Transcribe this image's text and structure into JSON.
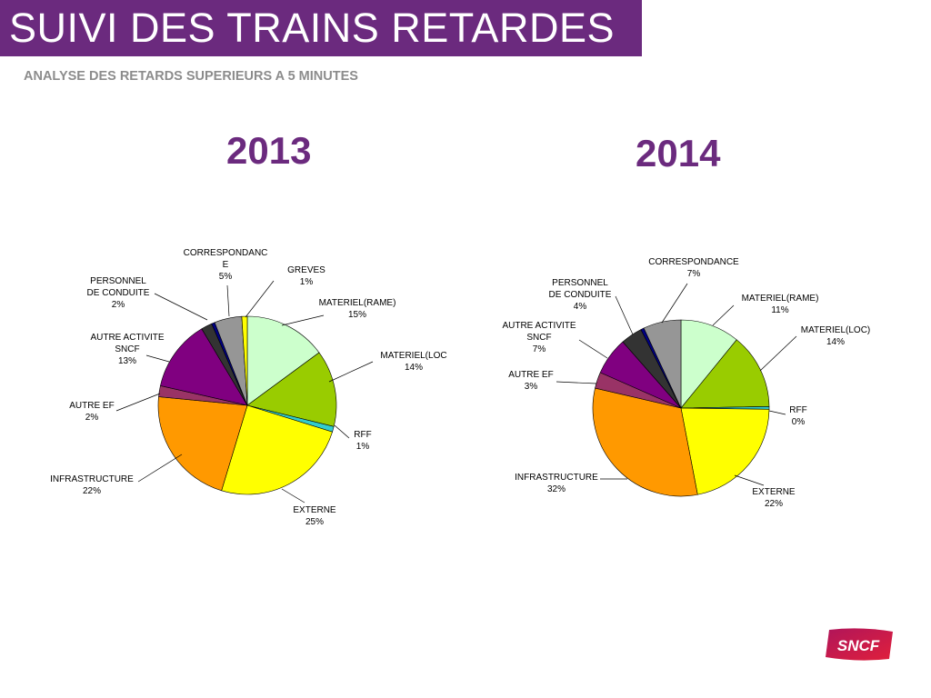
{
  "header": {
    "title": "SUIVI DES TRAINS RETARDES",
    "subtitle": "ANALYSE DES RETARDS SUPERIEURS A 5 MINUTES"
  },
  "logo": {
    "text": "SNCF",
    "icon": "sncf-logo"
  },
  "colors": {
    "brand_purple": "#6b2a7e",
    "subtitle_gray": "#8c8c8c"
  },
  "chart_data": [
    {
      "type": "pie",
      "title": "2013",
      "slices": [
        {
          "label": "MATERIEL(RAME)",
          "value": 15,
          "display": "15%",
          "color": "#ccffcc"
        },
        {
          "label": "MATERIEL(LOC",
          "value": 14,
          "display": "14%",
          "color": "#99cc00"
        },
        {
          "label": "RFF",
          "value": 1,
          "display": "1%",
          "color": "#33cccc"
        },
        {
          "label": "EXTERNE",
          "value": 25,
          "display": "25%",
          "color": "#ffff00"
        },
        {
          "label": "INFRASTRUCTURE",
          "value": 22,
          "display": "22%",
          "color": "#ff9900"
        },
        {
          "label": "AUTRE EF",
          "value": 2,
          "display": "2%",
          "color": "#993366"
        },
        {
          "label": "AUTRE ACTIVITE SNCF",
          "value": 13,
          "display": "13%",
          "color": "#800080"
        },
        {
          "label": "PERSONNEL DE CONDUITE",
          "value": 2,
          "display": "2%",
          "color": "#333333"
        },
        {
          "label": "",
          "value": 0.6,
          "display": "",
          "color": "#000080"
        },
        {
          "label": "CORRESPONDANCE",
          "value": 5,
          "display": "5%",
          "color": "#969696"
        },
        {
          "label": "GREVES",
          "value": 1,
          "display": "1%",
          "color": "#ffff00"
        }
      ]
    },
    {
      "type": "pie",
      "title": "2014",
      "slices": [
        {
          "label": "MATERIEL(RAME)",
          "value": 11,
          "display": "11%",
          "color": "#ccffcc"
        },
        {
          "label": "MATERIEL(LOC)",
          "value": 14,
          "display": "14%",
          "color": "#99cc00"
        },
        {
          "label": "RFF",
          "value": 0.5,
          "display": "0%",
          "color": "#33cccc"
        },
        {
          "label": "EXTERNE",
          "value": 22,
          "display": "22%",
          "color": "#ffff00"
        },
        {
          "label": "INFRASTRUCTURE",
          "value": 32,
          "display": "32%",
          "color": "#ff9900"
        },
        {
          "label": "AUTRE EF",
          "value": 3,
          "display": "3%",
          "color": "#993366"
        },
        {
          "label": "AUTRE ACTIVITE SNCF",
          "value": 7,
          "display": "7%",
          "color": "#800080"
        },
        {
          "label": "PERSONNEL DE CONDUITE",
          "value": 4,
          "display": "4%",
          "color": "#333333"
        },
        {
          "label": "",
          "value": 0.6,
          "display": "",
          "color": "#000080"
        },
        {
          "label": "CORRESPONDANCE",
          "value": 7,
          "display": "7%",
          "color": "#969696"
        }
      ]
    }
  ]
}
